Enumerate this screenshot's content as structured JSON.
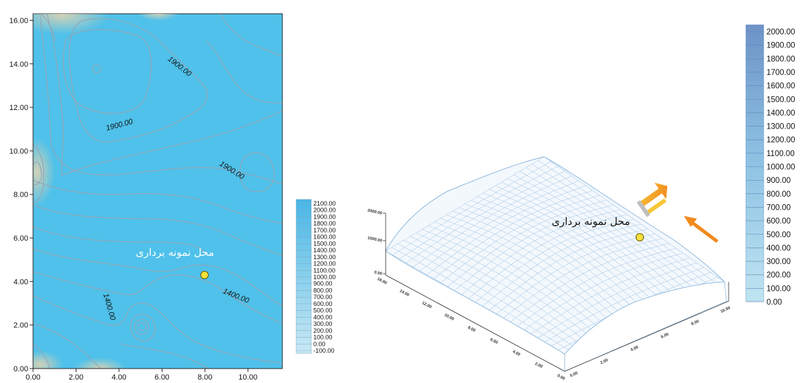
{
  "chart_data": [
    {
      "type": "contour",
      "x_ticks": [
        "0.00",
        "2.00",
        "4.00",
        "6.00",
        "8.00",
        "10.00"
      ],
      "y_ticks": [
        "0.00",
        "2.00",
        "4.00",
        "6.00",
        "8.00",
        "10.00",
        "12.00",
        "14.00",
        "16.00"
      ],
      "xlim": [
        0,
        11.6
      ],
      "ylim": [
        0,
        16.3
      ],
      "contour_labels": [
        {
          "text": "1900.00",
          "x": 5.9,
          "y": 14.8
        },
        {
          "text": "1900.00",
          "x": 2.9,
          "y": 10.2
        },
        {
          "text": "1900.00",
          "x": 9.4,
          "y": 8.7
        },
        {
          "text": "1400.00",
          "x": 9.2,
          "y": 3.8
        },
        {
          "text": "1400.00",
          "x": 4.2,
          "y": 2.7
        }
      ],
      "sample_point": {
        "x": 8.0,
        "y": 4.3,
        "label": "محل نمونه برداری"
      },
      "legend_values": [
        "2100.00",
        "2000.00",
        "1900.00",
        "1800.00",
        "1700.00",
        "1600.00",
        "1500.00",
        "1400.00",
        "1300.00",
        "1200.00",
        "1100.00",
        "1000.00",
        "900.00",
        "800.00",
        "700.00",
        "600.00",
        "500.00",
        "400.00",
        "300.00",
        "200.00",
        "100.00",
        "0.00",
        "-100.00"
      ]
    },
    {
      "type": "surface",
      "z_ticks": [
        "2000.00",
        "1000.00",
        "0.00"
      ],
      "left_axis_ticks": [
        "16.00",
        "14.00",
        "12.00",
        "10.00",
        "8.00",
        "6.00",
        "4.00",
        "2.00",
        "0.00"
      ],
      "right_axis_ticks": [
        "0.00",
        "2.00",
        "4.00",
        "6.00",
        "8.00",
        "10.00"
      ],
      "sample_point": {
        "label": "محل نمونه برداری"
      },
      "legend_values": [
        "2000.00",
        "1900.00",
        "1800.00",
        "1700.00",
        "1600.00",
        "1500.00",
        "1400.00",
        "1300.00",
        "1200.00",
        "1100.00",
        "1000.00",
        "900.00",
        "800.00",
        "700.00",
        "600.00",
        "500.00",
        "400.00",
        "300.00",
        "200.00",
        "100.00",
        "0.00"
      ]
    }
  ],
  "colors": {
    "contour_fill": "#4fc1ea",
    "contour_line": "#9aa5b4",
    "legend_top": "#55b9e2",
    "legend_bottom": "#c8e6f3",
    "legend2_top": "#6f95c8",
    "legend2_bottom": "#b8e2f0",
    "mesh": "#9fc3e0",
    "point": "#f6e13a",
    "arrow": "#f08a1d"
  }
}
